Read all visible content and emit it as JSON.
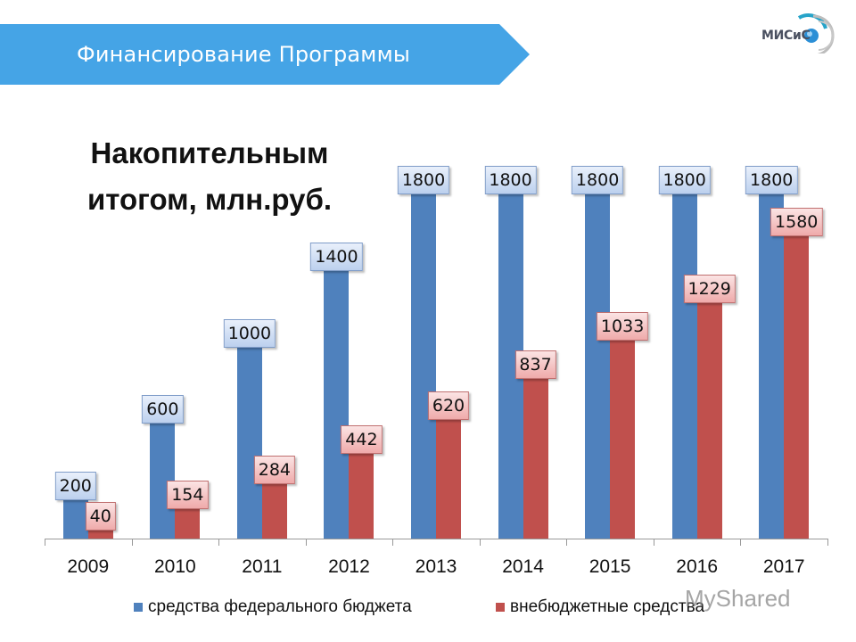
{
  "header": {
    "title": "Финансирование Программы",
    "banner_color": "#45a4e6",
    "logo_text": "МИСиС"
  },
  "subtitle": {
    "line1": "Накопительным",
    "line2": "итогом, млн.руб."
  },
  "legend": {
    "series1": "средства федерального бюджета",
    "series2": "внебюджетные средства"
  },
  "watermark": "MyShared",
  "chart_data": {
    "type": "bar",
    "title": "Финансирование Программы",
    "subtitle": "Накопительным итогом, млн.руб.",
    "xlabel": "",
    "ylabel": "млн.руб.",
    "categories": [
      "2009",
      "2010",
      "2011",
      "2012",
      "2013",
      "2014",
      "2015",
      "2016",
      "2017"
    ],
    "series": [
      {
        "name": "средства федерального бюджета",
        "color": "#4f81bd",
        "values": [
          200,
          600,
          1000,
          1400,
          1800,
          1800,
          1800,
          1800,
          1800
        ]
      },
      {
        "name": "внебюджетные средства",
        "color": "#c0504d",
        "values": [
          40,
          154,
          284,
          442,
          620,
          837,
          1033,
          1229,
          1580
        ]
      }
    ],
    "ylim": [
      0,
      1800
    ],
    "grid": false,
    "legend_position": "bottom",
    "data_labels": true
  }
}
